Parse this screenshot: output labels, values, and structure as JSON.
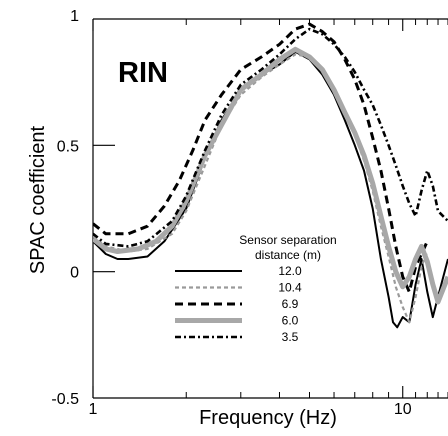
{
  "chart_data": {
    "type": "line",
    "title": "",
    "panel_label": "RIN",
    "xlabel": "Frequency (Hz)",
    "ylabel": "SPAC coefficient",
    "x_scale": "log",
    "xlim": [
      1,
      14
    ],
    "ylim": [
      -0.5,
      1
    ],
    "y_ticks": [
      {
        "value": 1,
        "label": "1"
      },
      {
        "value": 0.5,
        "label": "0.5"
      },
      {
        "value": 0,
        "label": "0"
      },
      {
        "value": -0.5,
        "label": "-0.5"
      }
    ],
    "x_major_ticks": [
      {
        "value": 1,
        "label": "1"
      },
      {
        "value": 10,
        "label": "10"
      }
    ],
    "legend": {
      "title_line1": "Sensor separation",
      "title_line2": "distance (m)",
      "placement": "center-right"
    },
    "series": [
      {
        "name": "12.0",
        "style": "solid",
        "color": "#000000",
        "x": [
          1.0,
          1.1,
          1.2,
          1.3,
          1.5,
          1.7,
          2.0,
          2.3,
          2.6,
          3.0,
          3.5,
          4.0,
          4.5,
          5.0,
          5.5,
          6.0,
          6.5,
          7.0,
          7.5,
          8.0,
          8.5,
          9.0,
          9.3,
          9.6,
          10.0,
          10.5,
          11.0,
          11.5,
          12.0,
          12.5,
          13.0,
          14.0
        ],
        "y": [
          0.12,
          0.07,
          0.05,
          0.05,
          0.06,
          0.12,
          0.25,
          0.45,
          0.6,
          0.72,
          0.78,
          0.82,
          0.87,
          0.84,
          0.78,
          0.7,
          0.6,
          0.5,
          0.4,
          0.25,
          0.05,
          -0.1,
          -0.2,
          -0.22,
          -0.18,
          -0.2,
          -0.05,
          0.05,
          -0.08,
          -0.18,
          -0.1,
          0.05
        ]
      },
      {
        "name": "10.4",
        "style": "short-dash",
        "color": "#9a9a9a",
        "x": [
          1.0,
          1.1,
          1.3,
          1.5,
          1.8,
          2.0,
          2.3,
          2.6,
          3.0,
          3.5,
          4.0,
          4.5,
          5.0,
          5.5,
          6.0,
          6.5,
          7.0,
          7.5,
          8.0,
          8.5,
          9.0,
          9.5,
          10.0,
          10.5,
          11.0,
          11.5,
          12.0
        ],
        "y": [
          0.14,
          0.1,
          0.08,
          0.09,
          0.15,
          0.24,
          0.42,
          0.58,
          0.7,
          0.77,
          0.82,
          0.86,
          0.85,
          0.8,
          0.72,
          0.63,
          0.54,
          0.44,
          0.32,
          0.18,
          0.06,
          -0.06,
          -0.14,
          -0.2,
          -0.1,
          0.02,
          0.08
        ]
      },
      {
        "name": "6.9",
        "style": "long-dash",
        "color": "#000000",
        "x": [
          1.0,
          1.1,
          1.3,
          1.5,
          1.7,
          1.9,
          2.1,
          2.3,
          2.6,
          3.0,
          3.5,
          4.0,
          4.5,
          5.0,
          5.5,
          6.0,
          6.5,
          7.0,
          7.5,
          8.0,
          8.5,
          9.0,
          9.5,
          10.0,
          10.5,
          11.0,
          12.0
        ],
        "y": [
          0.19,
          0.15,
          0.15,
          0.18,
          0.26,
          0.36,
          0.48,
          0.6,
          0.7,
          0.8,
          0.85,
          0.9,
          0.96,
          0.98,
          0.95,
          0.91,
          0.84,
          0.76,
          0.66,
          0.53,
          0.4,
          0.25,
          0.1,
          -0.02,
          -0.08,
          0.02,
          0.12
        ]
      },
      {
        "name": "6.0",
        "style": "solid",
        "color": "#a8a8a8",
        "x": [
          1.0,
          1.1,
          1.2,
          1.4,
          1.6,
          1.8,
          2.0,
          2.3,
          2.6,
          3.0,
          3.5,
          4.0,
          4.5,
          5.0,
          5.5,
          6.0,
          6.5,
          7.0,
          7.5,
          8.0,
          8.5,
          9.0,
          9.5,
          10.0,
          10.5,
          11.0,
          11.5,
          12.0,
          12.5,
          13.0,
          14.0
        ],
        "y": [
          0.13,
          0.09,
          0.08,
          0.09,
          0.12,
          0.18,
          0.28,
          0.46,
          0.58,
          0.72,
          0.78,
          0.84,
          0.88,
          0.85,
          0.8,
          0.72,
          0.63,
          0.55,
          0.46,
          0.35,
          0.22,
          0.1,
          0.0,
          -0.06,
          -0.02,
          0.05,
          0.1,
          0.04,
          -0.05,
          -0.12,
          -0.02
        ]
      },
      {
        "name": "3.5",
        "style": "dash-dot",
        "color": "#000000",
        "x": [
          1.0,
          1.1,
          1.3,
          1.5,
          1.8,
          2.0,
          2.3,
          2.6,
          3.0,
          3.5,
          4.0,
          4.5,
          5.0,
          5.5,
          6.0,
          6.5,
          7.0,
          7.5,
          8.0,
          8.5,
          9.0,
          9.5,
          10.0,
          10.5,
          11.0,
          11.5,
          12.0,
          12.5,
          13.0,
          14.0
        ],
        "y": [
          0.15,
          0.11,
          0.1,
          0.12,
          0.2,
          0.3,
          0.48,
          0.62,
          0.74,
          0.8,
          0.86,
          0.92,
          0.96,
          0.94,
          0.9,
          0.85,
          0.79,
          0.72,
          0.66,
          0.58,
          0.5,
          0.42,
          0.34,
          0.27,
          0.22,
          0.32,
          0.4,
          0.34,
          0.24,
          0.2
        ]
      }
    ]
  }
}
